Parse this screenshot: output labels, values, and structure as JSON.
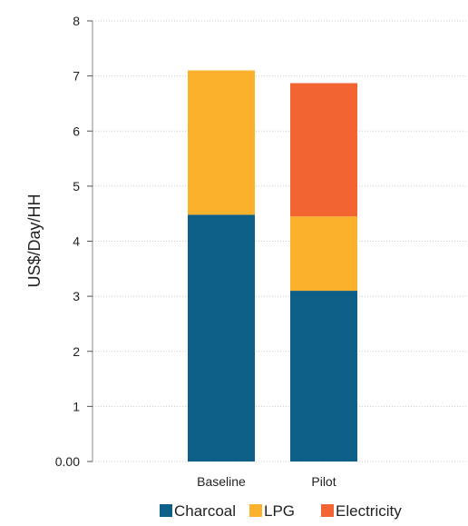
{
  "chart_data": {
    "type": "bar",
    "stacked": true,
    "categories": [
      "Baseline",
      "Pilot"
    ],
    "series": [
      {
        "name": "Charcoal",
        "values": [
          4.48,
          3.1
        ],
        "color": "#0e5f88"
      },
      {
        "name": "LPG",
        "values": [
          2.62,
          1.35
        ],
        "color": "#fbb12b"
      },
      {
        "name": "Electricity",
        "values": [
          0,
          2.42
        ],
        "color": "#f26432"
      }
    ],
    "ylabel": "US$/Day/HH",
    "ylim": [
      0,
      8
    ],
    "yticks": [
      "0.00",
      "1",
      "2",
      "3",
      "4",
      "5",
      "6",
      "7",
      "8"
    ],
    "grid": true,
    "legend_position": "bottom"
  }
}
